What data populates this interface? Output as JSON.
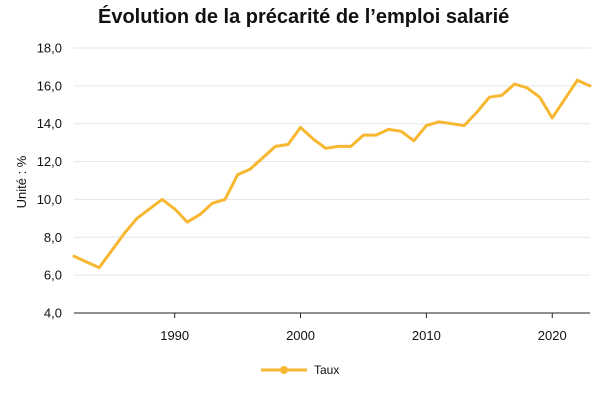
{
  "chart_data": {
    "type": "line",
    "title": "Évolution de la précarité de l’emploi salarié",
    "ylabel": "Unité : %",
    "xlabel": "",
    "xlim": [
      1982,
      2023
    ],
    "ylim": [
      4,
      18
    ],
    "x_ticks": [
      1990,
      2000,
      2010,
      2020
    ],
    "y_ticks": [
      4,
      6,
      8,
      10,
      12,
      14,
      16,
      18
    ],
    "y_tick_labels": [
      "4,0",
      "6,0",
      "8,0",
      "10,0",
      "12,0",
      "14,0",
      "16,0",
      "18,0"
    ],
    "grid": "horizontal",
    "legend_position": "bottom",
    "series": [
      {
        "name": "Taux",
        "color": "#f7b731",
        "x": [
          1982,
          1984,
          1985,
          1986,
          1987,
          1988,
          1989,
          1990,
          1991,
          1992,
          1993,
          1994,
          1995,
          1996,
          1997,
          1998,
          1999,
          2000,
          2001,
          2002,
          2003,
          2004,
          2005,
          2006,
          2007,
          2008,
          2009,
          2010,
          2011,
          2012,
          2013,
          2014,
          2015,
          2016,
          2017,
          2018,
          2019,
          2020,
          2021,
          2022,
          2023
        ],
        "values": [
          7.0,
          6.4,
          7.3,
          8.2,
          9.0,
          9.5,
          10.0,
          9.5,
          8.8,
          9.2,
          9.8,
          10.0,
          11.3,
          11.6,
          12.2,
          12.8,
          12.9,
          13.8,
          13.2,
          12.7,
          12.8,
          12.8,
          13.4,
          13.4,
          13.7,
          13.6,
          13.1,
          13.9,
          14.1,
          14.0,
          13.9,
          14.6,
          15.4,
          15.5,
          16.1,
          15.9,
          15.4,
          14.3,
          15.3,
          16.3,
          16.0
        ]
      }
    ]
  }
}
